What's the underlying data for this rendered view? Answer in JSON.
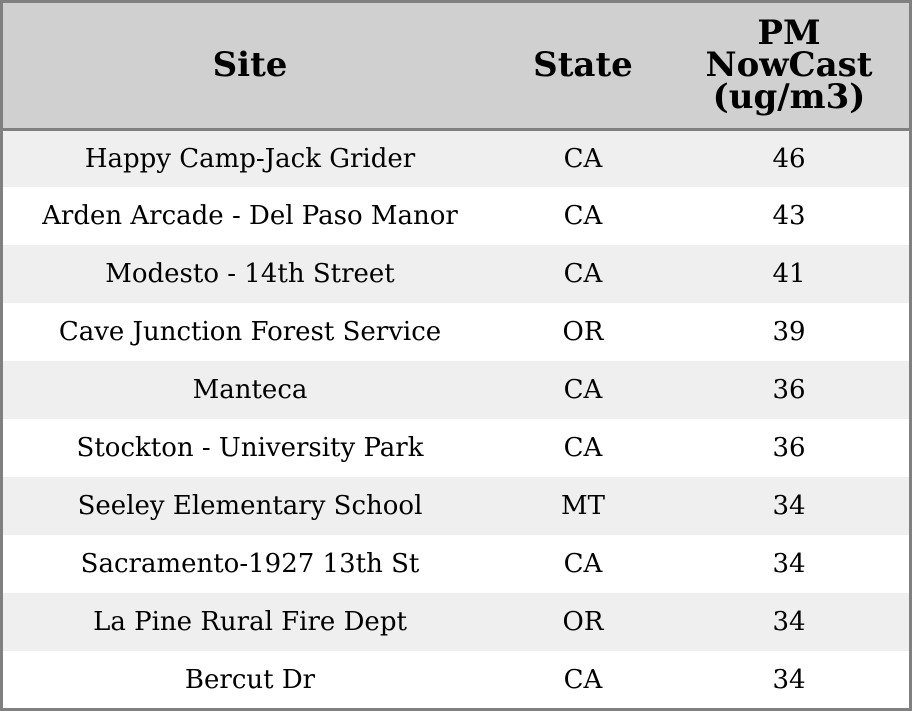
{
  "chart_data": {
    "type": "table",
    "columns": [
      "Site",
      "State",
      "PM NowCast (ug/m3)"
    ],
    "header_lines": {
      "site": "Site",
      "state": "State",
      "pm_line1": "PM",
      "pm_line2": "NowCast",
      "pm_line3": "(ug/m3)"
    },
    "rows": [
      {
        "site": "Happy Camp-Jack Grider",
        "state": "CA",
        "pm": 46
      },
      {
        "site": "Arden Arcade - Del Paso Manor",
        "state": "CA",
        "pm": 43
      },
      {
        "site": "Modesto - 14th Street",
        "state": "CA",
        "pm": 41
      },
      {
        "site": "Cave Junction Forest Service",
        "state": "OR",
        "pm": 39
      },
      {
        "site": "Manteca",
        "state": "CA",
        "pm": 36
      },
      {
        "site": "Stockton - University Park",
        "state": "CA",
        "pm": 36
      },
      {
        "site": "Seeley Elementary School",
        "state": "MT",
        "pm": 34
      },
      {
        "site": "Sacramento-1927 13th St",
        "state": "CA",
        "pm": 34
      },
      {
        "site": "La Pine Rural Fire Dept",
        "state": "OR",
        "pm": 34
      },
      {
        "site": "Bercut Dr",
        "state": "CA",
        "pm": 34
      }
    ]
  },
  "colors": {
    "header_background": "#d0d0d0",
    "stripe_background": "#efefef",
    "border": "#808080"
  }
}
